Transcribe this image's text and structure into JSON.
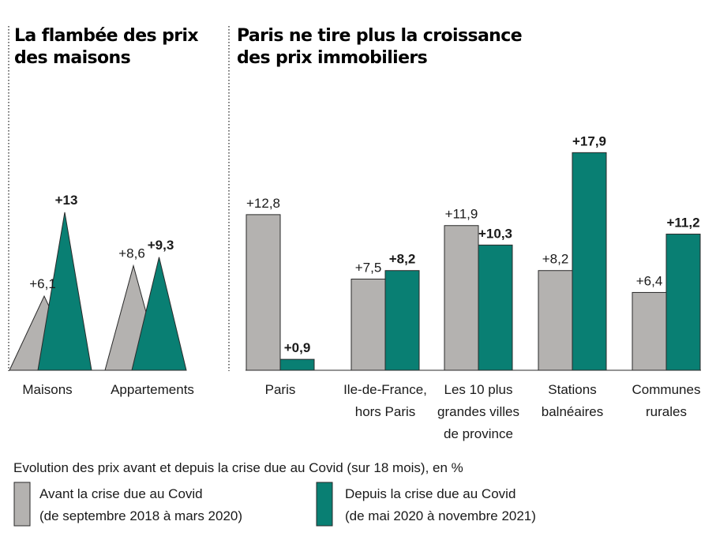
{
  "colors": {
    "before": "#b4b2b0",
    "after": "#097f73",
    "edge": "#2a2a2a"
  },
  "legend": {
    "caption": "Evolution des prix avant et depuis la crise due au Covid (sur 18 mois), en %",
    "before_line1": "Avant la crise due au Covid",
    "before_line2": "(de septembre 2018 à mars 2020)",
    "after_line1": "Depuis la crise due au Covid",
    "after_line2": "(de mai 2020 à novembre 2021)"
  },
  "chart_data": [
    {
      "type": "area",
      "shape": "triangle",
      "title_lines": [
        "La flambée des prix",
        "des maisons"
      ],
      "categories": [
        "Maisons",
        "Appartements"
      ],
      "series": [
        {
          "name": "Avant la crise due au Covid",
          "values": [
            6.1,
            8.6
          ],
          "labels": [
            "+6,1",
            "+8,6"
          ]
        },
        {
          "name": "Depuis la crise due au Covid",
          "values": [
            13,
            9.3
          ],
          "labels": [
            "+13",
            "+9,3"
          ]
        }
      ],
      "ylim": [
        0,
        20
      ],
      "grid": false,
      "legend_position": "bottom"
    },
    {
      "type": "bar",
      "title_lines": [
        "Paris ne tire plus la croissance",
        "des prix immobiliers"
      ],
      "categories": [
        [
          "Paris"
        ],
        [
          "Ile-de-France,",
          "hors Paris"
        ],
        [
          "Les 10 plus",
          "grandes villes",
          "de province"
        ],
        [
          "Stations",
          "balnéaires"
        ],
        [
          "Communes",
          "rurales"
        ]
      ],
      "series": [
        {
          "name": "Avant la crise due au Covid",
          "values": [
            12.8,
            7.5,
            11.9,
            8.2,
            6.4
          ],
          "labels": [
            "+12,8",
            "+7,5",
            "+11,9",
            "+8,2",
            "+6,4"
          ]
        },
        {
          "name": "Depuis la crise due au Covid",
          "values": [
            0.9,
            8.2,
            10.3,
            17.9,
            11.2
          ],
          "labels": [
            "+0,9",
            "+8,2",
            "+10,3",
            "+17,9",
            "+11,2"
          ]
        }
      ],
      "ylim": [
        0,
        20
      ],
      "grid": false,
      "legend_position": "bottom"
    }
  ]
}
